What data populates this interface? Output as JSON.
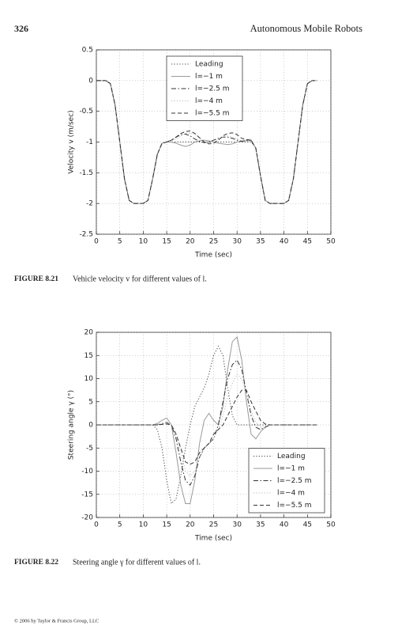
{
  "header": {
    "page": "326",
    "title": "Autonomous Mobile Robots"
  },
  "chart_data": [
    {
      "type": "line",
      "xlabel": "Time (sec)",
      "ylabel": "Velocity v (m/sec)",
      "xlim": [
        0,
        50
      ],
      "xticks": [
        0,
        5,
        10,
        15,
        20,
        25,
        30,
        35,
        40,
        45,
        50
      ],
      "ylim": [
        -2.5,
        0.5
      ],
      "yticks": [
        -2.5,
        -2,
        -1.5,
        -1,
        -0.5,
        0,
        0.5
      ],
      "grid": true,
      "legend": "top",
      "x": [
        0,
        1,
        2,
        3,
        4,
        5,
        6,
        7,
        8,
        9,
        10,
        11,
        12,
        13,
        14,
        15,
        16,
        17,
        18,
        19,
        20,
        21,
        22,
        23,
        24,
        25,
        26,
        27,
        28,
        29,
        30,
        31,
        32,
        33,
        34,
        35,
        36,
        37,
        38,
        39,
        40,
        41,
        42,
        43,
        44,
        45,
        46,
        47
      ],
      "series": [
        {
          "name": "Leading",
          "color": "#444444",
          "dash": "dotted",
          "values": [
            0,
            0,
            0,
            -0.05,
            -0.4,
            -1,
            -1.6,
            -1.95,
            -2,
            -2,
            -2,
            -1.95,
            -1.6,
            -1.2,
            -1.02,
            -1,
            -1,
            -1,
            -1,
            -1,
            -1,
            -1,
            -1,
            -1,
            -1,
            -1,
            -1,
            -1,
            -1,
            -1,
            -1,
            -1,
            -1,
            -1,
            -1.1,
            -1.55,
            -1.95,
            -2,
            -2,
            -2,
            -2,
            -1.95,
            -1.6,
            -1,
            -0.4,
            -0.05,
            0,
            0
          ]
        },
        {
          "name": "l=−1 m",
          "color": "#999999",
          "dash": "solid",
          "values": [
            0,
            0,
            0,
            -0.05,
            -0.4,
            -1,
            -1.6,
            -1.95,
            -2,
            -2,
            -2,
            -1.95,
            -1.6,
            -1.2,
            -1.02,
            -1,
            -1,
            -1.02,
            -1.05,
            -1.07,
            -1.05,
            -1,
            -0.98,
            -0.97,
            -0.98,
            -1,
            -1.02,
            -1.03,
            -1.04,
            -1.03,
            -1,
            -0.98,
            -0.97,
            -0.98,
            -1.1,
            -1.55,
            -1.95,
            -2,
            -2,
            -2,
            -2,
            -1.95,
            -1.6,
            -1,
            -0.4,
            -0.05,
            0,
            0
          ]
        },
        {
          "name": "l=−2.5 m",
          "color": "#333333",
          "dash": "dashdot",
          "values": [
            0,
            0,
            0,
            -0.05,
            -0.4,
            -1,
            -1.6,
            -1.95,
            -2,
            -2,
            -2,
            -1.95,
            -1.6,
            -1.2,
            -1.02,
            -1,
            -0.97,
            -0.92,
            -0.88,
            -0.87,
            -0.9,
            -0.95,
            -0.99,
            -1.01,
            -1,
            -0.97,
            -0.94,
            -0.92,
            -0.92,
            -0.94,
            -0.97,
            -0.99,
            -0.98,
            -0.97,
            -1.1,
            -1.55,
            -1.95,
            -2,
            -2,
            -2,
            -2,
            -1.95,
            -1.6,
            -1,
            -0.4,
            -0.05,
            0,
            0
          ]
        },
        {
          "name": "l=−4 m",
          "color": "#bbbbbb",
          "dash": "dotted",
          "values": [
            0,
            0,
            0,
            -0.05,
            -0.4,
            -1,
            -1.6,
            -1.95,
            -2,
            -2,
            -2,
            -1.95,
            -1.6,
            -1.2,
            -1.02,
            -1,
            -0.98,
            -0.95,
            -0.9,
            -0.86,
            -0.85,
            -0.88,
            -0.94,
            -0.99,
            -1.02,
            -1,
            -0.96,
            -0.92,
            -0.9,
            -0.92,
            -0.95,
            -0.98,
            -0.98,
            -0.98,
            -1.1,
            -1.55,
            -1.95,
            -2,
            -2,
            -2,
            -2,
            -1.95,
            -1.6,
            -1,
            -0.4,
            -0.05,
            0,
            0
          ]
        },
        {
          "name": "l=−5.5 m",
          "color": "#333333",
          "dash": "dashed",
          "values": [
            0,
            0,
            0,
            -0.05,
            -0.4,
            -1,
            -1.6,
            -1.95,
            -2,
            -2,
            -2,
            -1.95,
            -1.6,
            -1.2,
            -1.02,
            -1,
            -0.97,
            -0.92,
            -0.86,
            -0.83,
            -0.82,
            -0.86,
            -0.93,
            -1,
            -1.03,
            -1.02,
            -0.97,
            -0.9,
            -0.86,
            -0.85,
            -0.88,
            -0.94,
            -0.96,
            -0.97,
            -1.1,
            -1.55,
            -1.95,
            -2,
            -2,
            -2,
            -2,
            -1.95,
            -1.6,
            -1,
            -0.4,
            -0.05,
            0,
            0
          ]
        }
      ]
    },
    {
      "type": "line",
      "xlabel": "Time (sec)",
      "ylabel": "Steering angle γ (°)",
      "xlim": [
        0,
        50
      ],
      "xticks": [
        0,
        5,
        10,
        15,
        20,
        25,
        30,
        35,
        40,
        45,
        50
      ],
      "ylim": [
        -20,
        20
      ],
      "yticks": [
        -20,
        -15,
        -10,
        -5,
        0,
        5,
        10,
        15,
        20
      ],
      "grid": true,
      "legend": "lower right",
      "x": [
        0,
        1,
        2,
        3,
        4,
        5,
        6,
        7,
        8,
        9,
        10,
        11,
        12,
        13,
        14,
        15,
        16,
        17,
        18,
        19,
        20,
        21,
        22,
        23,
        24,
        25,
        26,
        27,
        28,
        29,
        30,
        31,
        32,
        33,
        34,
        35,
        36,
        37,
        38,
        39,
        40,
        41,
        42,
        43,
        44,
        45,
        46,
        47
      ],
      "series": [
        {
          "name": "Leading",
          "color": "#444444",
          "dash": "dotted",
          "values": [
            0,
            0,
            0,
            0,
            0,
            0,
            0,
            0,
            0,
            0,
            0,
            0,
            0,
            -1,
            -5,
            -12,
            -17,
            -16,
            -11,
            -5,
            0,
            4,
            6,
            8,
            11,
            15,
            17,
            15,
            8,
            2,
            0,
            0,
            0,
            0,
            0,
            0,
            0,
            0,
            0,
            0,
            0,
            0,
            0,
            0,
            0,
            0,
            0,
            0
          ]
        },
        {
          "name": "l=−1 m",
          "color": "#999999",
          "dash": "solid",
          "values": [
            0,
            0,
            0,
            0,
            0,
            0,
            0,
            0,
            0,
            0,
            0,
            0,
            0,
            0.3,
            1,
            1.5,
            0,
            -6,
            -13,
            -17,
            -17,
            -12,
            -4,
            1,
            2.5,
            1,
            0,
            4,
            12,
            18,
            19,
            14,
            5,
            -2,
            -3,
            -1.5,
            -0.5,
            0,
            0,
            0,
            0,
            0,
            0,
            0,
            0,
            0,
            0,
            0
          ]
        },
        {
          "name": "l=−2.5 m",
          "color": "#333333",
          "dash": "dashdot",
          "values": [
            0,
            0,
            0,
            0,
            0,
            0,
            0,
            0,
            0,
            0,
            0,
            0,
            0,
            0,
            0.3,
            0.5,
            0,
            -3,
            -8,
            -12,
            -13,
            -11,
            -7,
            -5,
            -4,
            -3,
            0,
            5,
            10,
            13,
            14,
            12,
            7,
            2,
            -0.5,
            -1,
            -0.5,
            0,
            0,
            0,
            0,
            0,
            0,
            0,
            0,
            0,
            0,
            0
          ]
        },
        {
          "name": "l=−4 m",
          "color": "#bbbbbb",
          "dash": "dotted",
          "values": [
            0,
            0,
            0,
            0,
            0,
            0,
            0,
            0,
            0,
            0,
            0,
            0,
            0,
            0,
            0.2,
            0.4,
            0,
            -2,
            -6,
            -10,
            -11,
            -10,
            -7,
            -5,
            -4,
            -3,
            -1,
            2,
            6,
            9,
            11,
            10,
            7,
            3,
            0.5,
            -0.5,
            -0.3,
            0,
            0,
            0,
            0,
            0,
            0,
            0,
            0,
            0,
            0,
            0
          ]
        },
        {
          "name": "l=−5.5 m",
          "color": "#333333",
          "dash": "dashed",
          "values": [
            0,
            0,
            0,
            0,
            0,
            0,
            0,
            0,
            0,
            0,
            0,
            0,
            0,
            0,
            0.1,
            0.2,
            0,
            -2,
            -5,
            -8,
            -8.5,
            -8,
            -6,
            -5,
            -4,
            -2,
            -1,
            0,
            2,
            4,
            6,
            7.5,
            7.5,
            5,
            3,
            1,
            0.2,
            0,
            0,
            0,
            0,
            0,
            0,
            0,
            0,
            0,
            0,
            0
          ]
        }
      ]
    }
  ],
  "captions": [
    {
      "label": "FIGURE 8.21",
      "text": "Vehicle velocity v for different values of l."
    },
    {
      "label": "FIGURE 8.22",
      "text": "Steering angle γ for different values of l."
    }
  ],
  "footer": "© 2006 by Taylor & Francis Group, LLC"
}
